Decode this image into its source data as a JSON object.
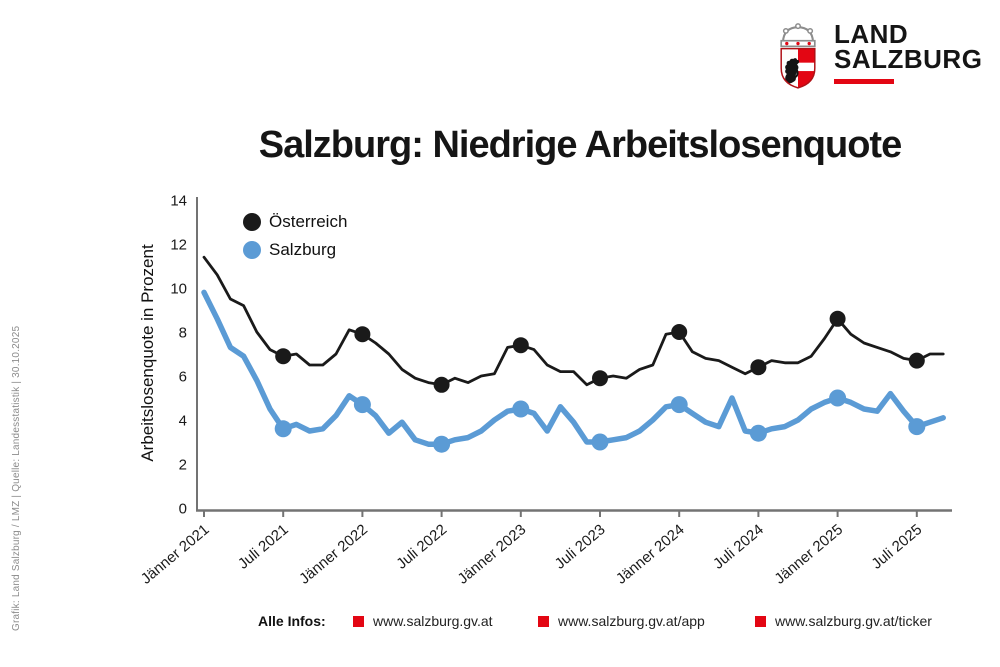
{
  "logo": {
    "line1": "LAND",
    "line2": "SALZBURG"
  },
  "title": "Salzburg: Niedrige Arbeitslosenquote",
  "source_note": "Grafik: Land Salzburg / LMZ | Quelle: Landesstatistik | 30.10.2025",
  "footer": {
    "label": "Alle Infos:",
    "links": [
      "www.salzburg.gv.at",
      "www.salzburg.gv.at/app",
      "www.salzburg.gv.at/ticker"
    ]
  },
  "colors": {
    "austria": "#1a1a1a",
    "salzburg": "#5b9bd5",
    "red": "#e30613",
    "axis": "#737373",
    "tick_text": "#1a1a1a",
    "source_text": "#8c8c8c"
  },
  "chart_data": {
    "type": "line",
    "title": "Salzburg: Niedrige Arbeitslosenquote",
    "ylabel": "Arbeitslosenquote in Prozent",
    "ylim": [
      0,
      14
    ],
    "yticks": [
      0,
      2,
      4,
      6,
      8,
      10,
      12,
      14
    ],
    "x_unit": "month",
    "x_range": "Jänner 2021 bis September 2025",
    "xtick_labels": [
      "Jänner 2021",
      "Juli 2021",
      "Jänner 2022",
      "Juli 2022",
      "Jänner 2023",
      "Juli 2023",
      "Jänner 2024",
      "Juli 2024",
      "Jänner 2025",
      "Juli 2025"
    ],
    "xtick_month_indices": [
      0,
      6,
      12,
      18,
      24,
      30,
      36,
      42,
      48,
      54
    ],
    "marker_month_indices": [
      6,
      12,
      18,
      24,
      30,
      36,
      42,
      48,
      54
    ],
    "legend": [
      "Österreich",
      "Salzburg"
    ],
    "legend_position": "top-left",
    "grid": false,
    "series": [
      {
        "name": "Österreich",
        "color": "#1a1a1a",
        "values": [
          11.4,
          10.6,
          9.5,
          9.2,
          8.0,
          7.2,
          6.9,
          7.0,
          6.5,
          6.5,
          7.0,
          8.1,
          7.9,
          7.5,
          7.0,
          6.3,
          5.9,
          5.7,
          5.6,
          5.9,
          5.7,
          6.0,
          6.1,
          7.3,
          7.4,
          7.2,
          6.5,
          6.2,
          6.2,
          5.6,
          5.9,
          6.0,
          5.9,
          6.3,
          6.5,
          7.9,
          8.0,
          7.1,
          6.8,
          6.7,
          6.4,
          6.1,
          6.4,
          6.7,
          6.6,
          6.6,
          6.9,
          7.7,
          8.6,
          7.9,
          7.5,
          7.3,
          7.1,
          6.8,
          6.7,
          7.0,
          7.0
        ]
      },
      {
        "name": "Salzburg",
        "color": "#5b9bd5",
        "values": [
          9.8,
          8.6,
          7.3,
          6.9,
          5.8,
          4.5,
          3.6,
          3.8,
          3.5,
          3.6,
          4.2,
          5.1,
          4.7,
          4.2,
          3.4,
          3.9,
          3.1,
          2.9,
          2.9,
          3.1,
          3.2,
          3.5,
          4.0,
          4.4,
          4.5,
          4.3,
          3.5,
          4.6,
          3.9,
          3.0,
          3.0,
          3.1,
          3.2,
          3.5,
          4.0,
          4.6,
          4.7,
          4.3,
          3.9,
          3.7,
          5.0,
          3.5,
          3.4,
          3.6,
          3.7,
          4.0,
          4.5,
          4.8,
          5.0,
          4.8,
          4.5,
          4.4,
          5.2,
          4.4,
          3.7,
          3.9,
          4.1
        ]
      }
    ]
  }
}
